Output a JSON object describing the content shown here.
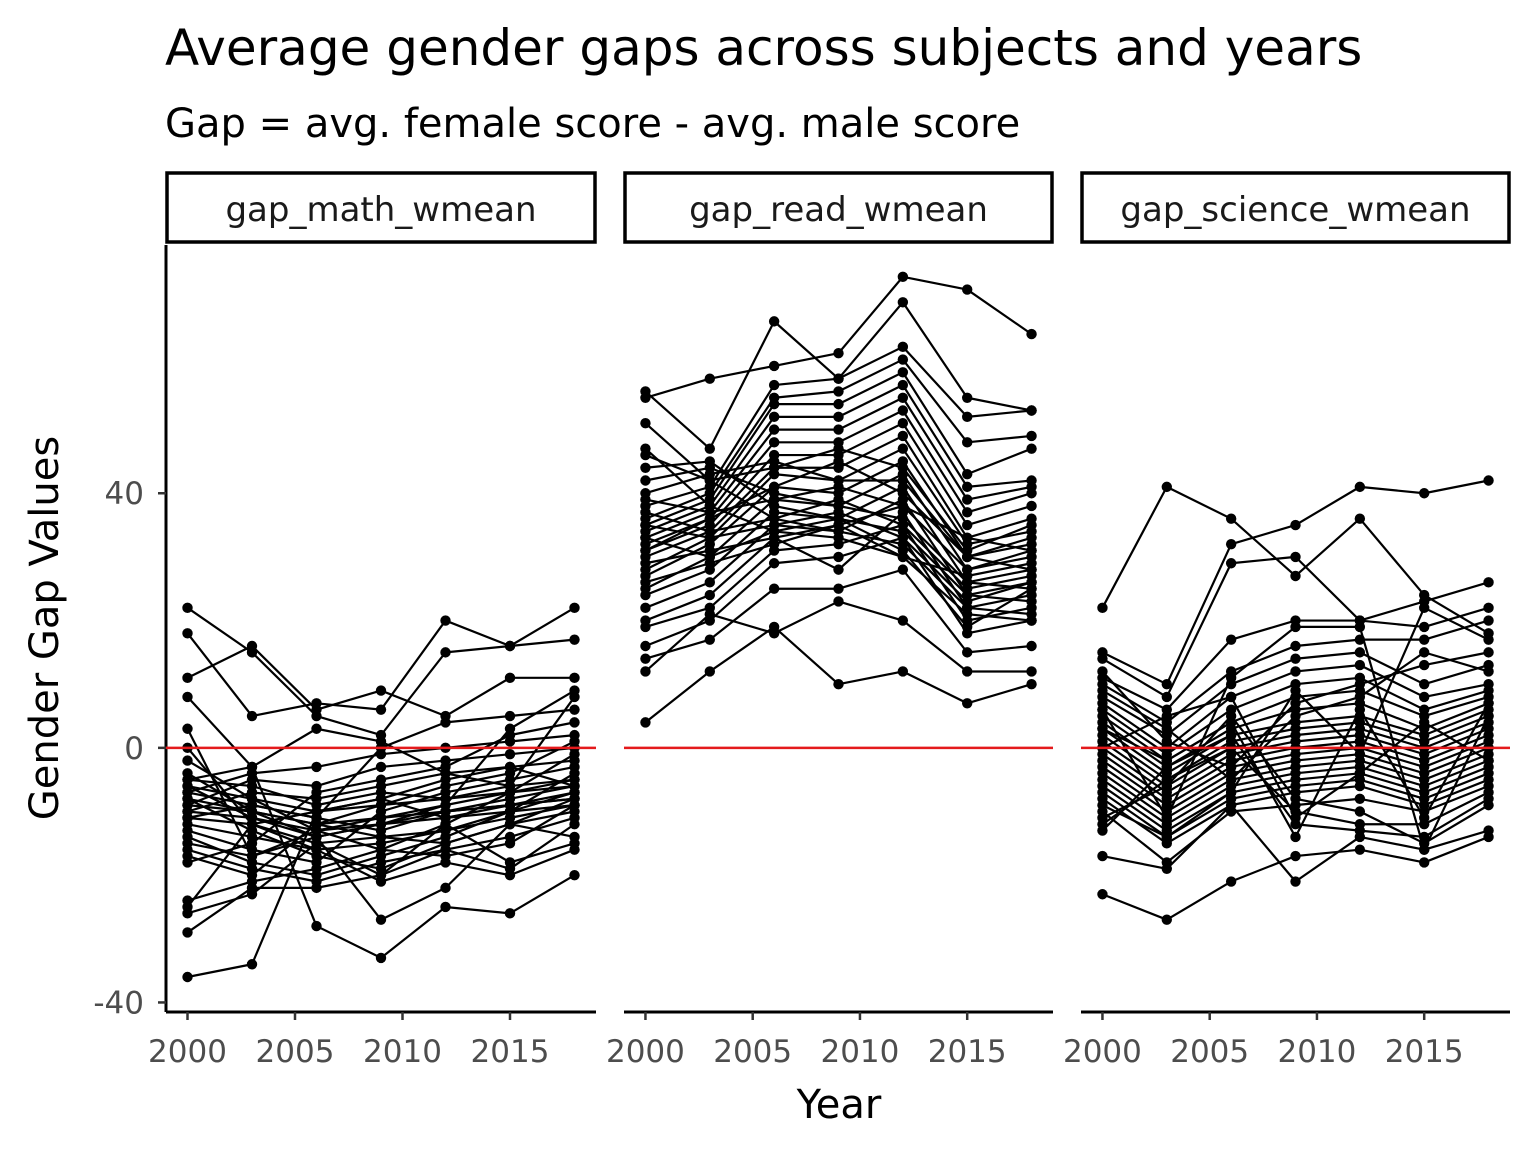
{
  "chart_data": {
    "type": "line",
    "title": "Average gender gaps across subjects and years",
    "subtitle": "Gap = avg. female score - avg. male score",
    "xlabel": "Year",
    "ylabel": "Gender Gap Values",
    "x_ticks": [
      2000,
      2005,
      2010,
      2015
    ],
    "y_ticks": [
      -40,
      0,
      40
    ],
    "xlim": [
      1999,
      2019
    ],
    "ylim": [
      -41.5,
      79
    ],
    "reference_line": {
      "y": 0,
      "color": "#e41a1c"
    },
    "grid": false,
    "legend": "none",
    "colors": {
      "points": "#000000",
      "lines": "#000000",
      "reference": "#e41a1c"
    },
    "panels": [
      {
        "name": "gap_math_wmean",
        "years": [
          2000,
          2003,
          2006,
          2009,
          2012,
          2015,
          2018
        ],
        "series": [
          [
            22,
            15,
            5,
            2,
            15,
            16,
            22
          ],
          [
            18,
            5,
            7,
            6,
            20,
            16,
            17
          ],
          [
            -36,
            -34,
            -10,
            -8,
            -5,
            -3,
            -6
          ],
          [
            -29,
            -22,
            -22,
            -20,
            -12,
            -18,
            -15
          ],
          [
            11,
            16,
            6,
            9,
            5,
            11,
            11
          ],
          [
            8,
            -3,
            -28,
            -33,
            -25,
            -26,
            -20
          ],
          [
            3,
            -17,
            -14,
            -27,
            -22,
            -12,
            -14
          ],
          [
            0,
            -12,
            -15,
            -20,
            -16,
            -19,
            -12
          ],
          [
            -2,
            -8,
            -13,
            -16,
            -17,
            -15,
            -9
          ],
          [
            -4,
            -10,
            -12,
            -14,
            -15,
            -12,
            -10
          ],
          [
            -5,
            -6,
            -9,
            -7,
            -8,
            -6,
            -5
          ],
          [
            -6,
            -11,
            -14,
            -12,
            -10,
            -9,
            -7
          ],
          [
            -7,
            -4,
            -3,
            -1,
            0,
            1,
            2
          ],
          [
            -8,
            -13,
            -17,
            -19,
            -15,
            -12,
            -8
          ],
          [
            -9,
            -5,
            -6,
            -3,
            -2,
            -1,
            0
          ],
          [
            -10,
            -7,
            -8,
            -6,
            -4,
            -3,
            -2
          ],
          [
            -11,
            -9,
            -11,
            -13,
            -10,
            -8,
            -6
          ],
          [
            -12,
            -14,
            -16,
            -15,
            -13,
            -11,
            -9
          ],
          [
            -13,
            -16,
            -18,
            -10,
            -7,
            -5,
            -3
          ],
          [
            -14,
            -18,
            -20,
            -17,
            -14,
            -10,
            -4
          ],
          [
            -15,
            -17,
            -13,
            -11,
            -9,
            -7,
            -5
          ],
          [
            -16,
            -19,
            -21,
            -18,
            -16,
            -14,
            -11
          ],
          [
            -17,
            -20,
            -12,
            -9,
            -6,
            -4,
            1
          ],
          [
            -18,
            -15,
            -7,
            -5,
            -3,
            2,
            4
          ],
          [
            -24,
            -21,
            -19,
            -16,
            -12,
            -7,
            -1
          ],
          [
            -25,
            -12,
            -10,
            -8,
            -11,
            -9,
            -8
          ],
          [
            -26,
            -23,
            -15,
            -14,
            -13,
            -10,
            -7
          ],
          [
            -7,
            -9,
            -11,
            0,
            4,
            5,
            6
          ],
          [
            -5,
            -3,
            3,
            1,
            -4,
            -6,
            8
          ],
          [
            -9,
            -10,
            -14,
            -12,
            -9,
            3,
            9
          ],
          [
            -11,
            -12,
            -16,
            -21,
            -18,
            -20,
            -16
          ],
          [
            -6,
            -8,
            -10,
            -9,
            -8,
            -7,
            -6
          ],
          [
            -8,
            -10,
            -12,
            -11,
            -10,
            -9,
            -8
          ],
          [
            -10,
            -11,
            -13,
            -12,
            -11,
            -10,
            -9
          ]
        ]
      },
      {
        "name": "gap_read_wmean",
        "years": [
          2000,
          2003,
          2006,
          2009,
          2012,
          2015,
          2018
        ],
        "series": [
          [
            55,
            58,
            60,
            62,
            74,
            72,
            65
          ],
          [
            56,
            47,
            67,
            58,
            70,
            55,
            53
          ],
          [
            4,
            12,
            19,
            10,
            12,
            7,
            10
          ],
          [
            12,
            21,
            18,
            23,
            20,
            12,
            12
          ],
          [
            14,
            17,
            25,
            25,
            28,
            15,
            16
          ],
          [
            16,
            20,
            29,
            30,
            33,
            18,
            20
          ],
          [
            19,
            22,
            31,
            32,
            35,
            20,
            22
          ],
          [
            20,
            24,
            33,
            28,
            37,
            22,
            24
          ],
          [
            22,
            26,
            35,
            34,
            39,
            24,
            26
          ],
          [
            24,
            28,
            37,
            36,
            41,
            26,
            28
          ],
          [
            25,
            30,
            39,
            38,
            43,
            28,
            30
          ],
          [
            27,
            32,
            41,
            40,
            45,
            30,
            32
          ],
          [
            28,
            33,
            43,
            42,
            47,
            32,
            34
          ],
          [
            30,
            34,
            44,
            44,
            49,
            33,
            36
          ],
          [
            31,
            35,
            46,
            46,
            51,
            35,
            38
          ],
          [
            32,
            36,
            48,
            48,
            53,
            37,
            40
          ],
          [
            33,
            37,
            50,
            50,
            55,
            39,
            41
          ],
          [
            34,
            38,
            52,
            52,
            57,
            41,
            42
          ],
          [
            35,
            39,
            54,
            54,
            59,
            43,
            47
          ],
          [
            36,
            40,
            55,
            56,
            61,
            48,
            49
          ],
          [
            38,
            41,
            57,
            58,
            63,
            52,
            53
          ],
          [
            40,
            43,
            45,
            42,
            42,
            30,
            28
          ],
          [
            42,
            44,
            40,
            38,
            36,
            26,
            25
          ],
          [
            44,
            45,
            38,
            36,
            34,
            24,
            23
          ],
          [
            46,
            42,
            36,
            34,
            32,
            22,
            21
          ],
          [
            47,
            38,
            34,
            33,
            30,
            21,
            20
          ],
          [
            29,
            31,
            33,
            35,
            38,
            33,
            31
          ],
          [
            26,
            29,
            32,
            35,
            30,
            27,
            29
          ],
          [
            31,
            36,
            41,
            45,
            40,
            30,
            33
          ],
          [
            37,
            34,
            36,
            39,
            35,
            25,
            27
          ],
          [
            35,
            33,
            35,
            37,
            33,
            23,
            26
          ],
          [
            39,
            37,
            39,
            41,
            38,
            28,
            31
          ],
          [
            33,
            30,
            34,
            36,
            31,
            19,
            25
          ],
          [
            51,
            42,
            44,
            47,
            44,
            31,
            35
          ]
        ]
      },
      {
        "name": "gap_science_wmean",
        "years": [
          2000,
          2003,
          2006,
          2009,
          2012,
          2015,
          2018
        ],
        "series": [
          [
            22,
            41,
            36,
            27,
            36,
            24,
            18
          ],
          [
            15,
            10,
            32,
            35,
            41,
            40,
            42
          ],
          [
            14,
            8,
            29,
            30,
            20,
            23,
            26
          ],
          [
            -23,
            -27,
            -21,
            -17,
            -16,
            -18,
            -14
          ],
          [
            -17,
            -19,
            -9,
            -21,
            -14,
            -16,
            -13
          ],
          [
            11,
            6,
            17,
            20,
            20,
            19,
            22
          ],
          [
            10,
            4,
            12,
            16,
            17,
            17,
            20
          ],
          [
            8,
            2,
            10,
            14,
            15,
            10,
            13
          ],
          [
            7,
            0,
            8,
            12,
            13,
            8,
            10
          ],
          [
            6,
            -1,
            6,
            10,
            11,
            6,
            9
          ],
          [
            5,
            -2,
            4,
            8,
            9,
            5,
            8
          ],
          [
            4,
            -3,
            3,
            6,
            7,
            3,
            7
          ],
          [
            3,
            -4,
            2,
            4,
            5,
            2,
            6
          ],
          [
            2,
            -5,
            1,
            3,
            4,
            1,
            5
          ],
          [
            1,
            -6,
            0,
            2,
            3,
            0,
            4
          ],
          [
            0,
            -7,
            -1,
            1,
            2,
            -1,
            3
          ],
          [
            -1,
            -8,
            -2,
            0,
            1,
            -2,
            2
          ],
          [
            -2,
            -9,
            -3,
            -1,
            0,
            -3,
            1
          ],
          [
            -3,
            -10,
            -4,
            -2,
            -1,
            -4,
            0
          ],
          [
            -4,
            -11,
            -5,
            -3,
            -2,
            -5,
            -1
          ],
          [
            -5,
            -12,
            -6,
            -4,
            -3,
            -6,
            -2
          ],
          [
            -6,
            -13,
            -7,
            -5,
            -4,
            -7,
            -3
          ],
          [
            -7,
            -14,
            -8,
            -6,
            -5,
            -8,
            -4
          ],
          [
            -8,
            -15,
            -9,
            -7,
            -6,
            -9,
            -5
          ],
          [
            -10,
            -18,
            -10,
            -9,
            -8,
            -10,
            -6
          ],
          [
            -12,
            -5,
            0,
            -10,
            -12,
            -12,
            -7
          ],
          [
            -13,
            -3,
            2,
            -12,
            -13,
            -14,
            -8
          ],
          [
            9,
            3,
            -5,
            5,
            8,
            15,
            12
          ],
          [
            12,
            1,
            -3,
            7,
            10,
            13,
            15
          ],
          [
            -11,
            -6,
            5,
            -8,
            -10,
            -15,
            -9
          ],
          [
            -9,
            -14,
            -7,
            9,
            -1,
            22,
            17
          ],
          [
            6,
            -11,
            11,
            19,
            19,
            -16,
            5
          ],
          [
            0,
            5,
            8,
            -11,
            -4,
            4,
            -2
          ],
          [
            3,
            -2,
            4,
            -14,
            6,
            -11,
            7
          ]
        ]
      }
    ]
  }
}
